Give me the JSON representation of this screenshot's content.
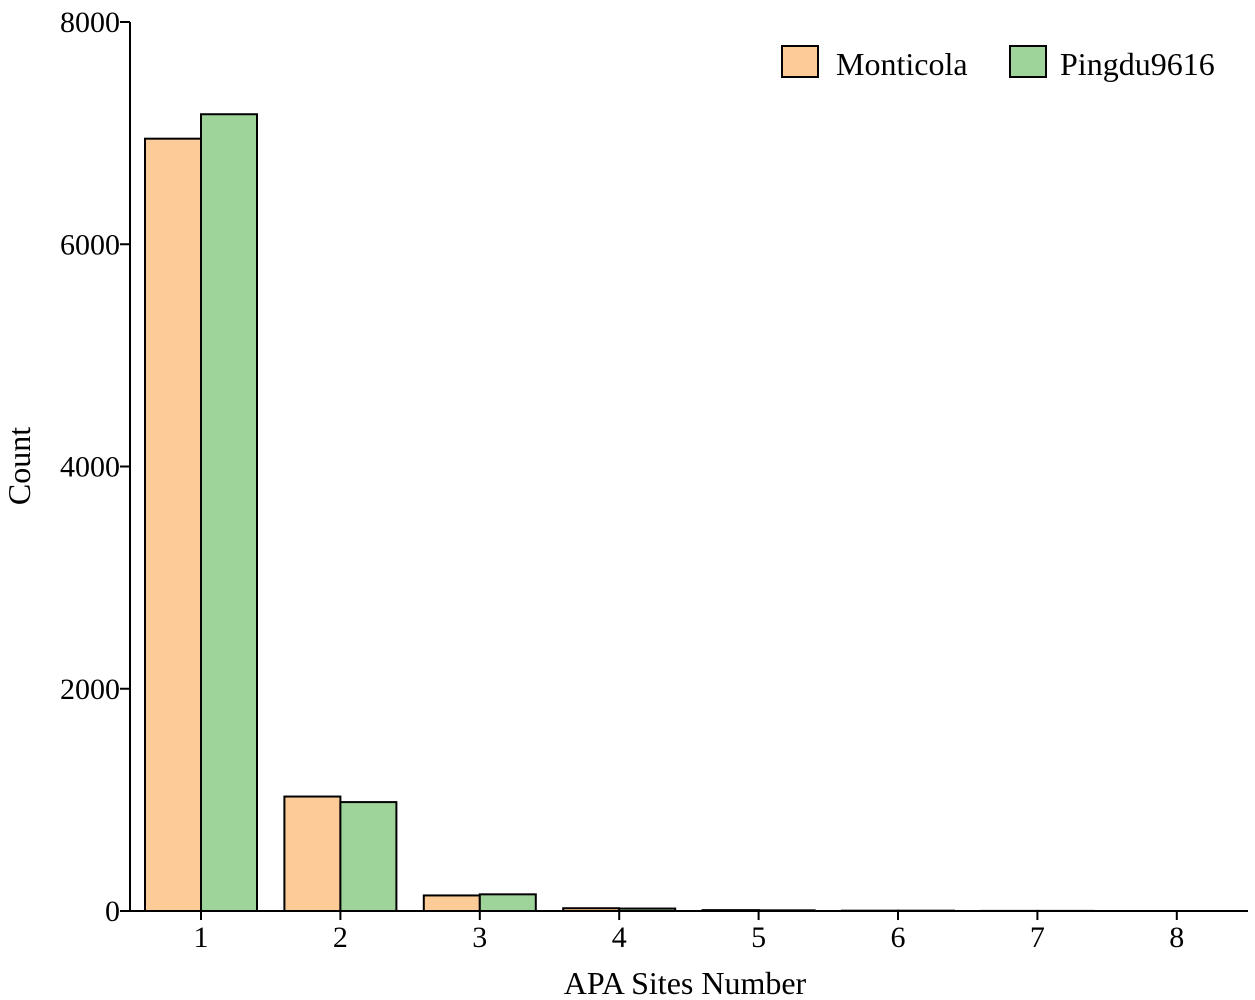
{
  "chart_data": {
    "type": "bar",
    "title": "",
    "xlabel": "APA Sites Number",
    "ylabel": "Count",
    "categories": [
      "1",
      "2",
      "3",
      "4",
      "5",
      "6",
      "7",
      "8"
    ],
    "series": [
      {
        "name": "Monticola",
        "color": "#FDCB98",
        "values": [
          6950,
          1030,
          140,
          25,
          8,
          3,
          1,
          0
        ]
      },
      {
        "name": "Pingdu9616",
        "color": "#9ED49A",
        "values": [
          7170,
          980,
          150,
          22,
          6,
          3,
          1,
          0
        ]
      }
    ],
    "ylim": [
      0,
      8000
    ],
    "yticks": [
      "0",
      "2000",
      "4000",
      "6000",
      "8000"
    ],
    "grid": false,
    "legend_position": "top-right"
  }
}
